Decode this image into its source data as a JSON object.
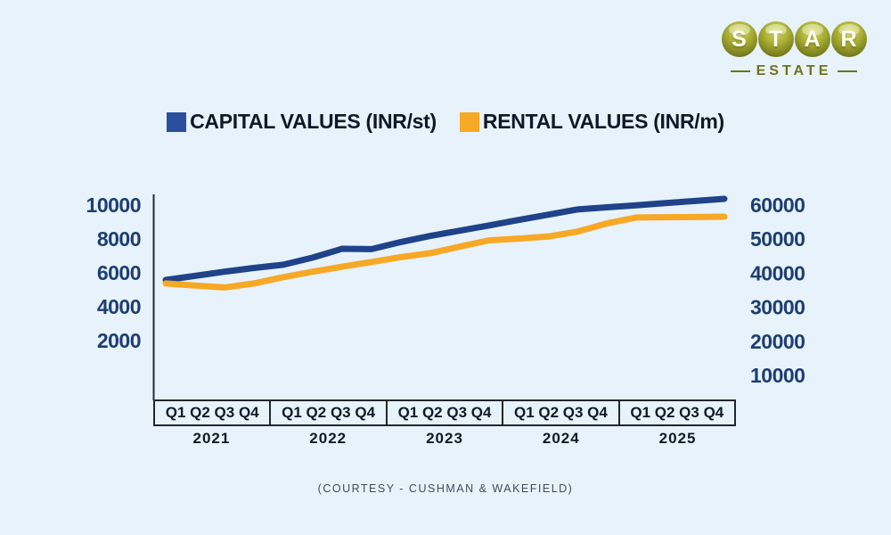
{
  "logo": {
    "letters": [
      "S",
      "T",
      "A",
      "R"
    ],
    "subtitle": "ESTATE"
  },
  "legend": [
    {
      "label": "CAPITAL VALUES (INR/st)",
      "color": "#2b4f9e"
    },
    {
      "label": "RENTAL VALUES (INR/m)",
      "color": "#f7a825"
    }
  ],
  "footer": {
    "courtesy": "(COURTESY - CUSHMAN & WAKEFIELD)"
  },
  "chart_data": {
    "type": "line",
    "x_axis": {
      "years": [
        "2021",
        "2022",
        "2023",
        "2024",
        "2025"
      ],
      "quarters_per_year": [
        "Q1",
        "Q2",
        "Q3",
        "Q4"
      ]
    },
    "left_axis": {
      "label": "CAPITAL VALUES (INR/st)",
      "ticks": [
        2000,
        4000,
        6000,
        8000,
        10000
      ]
    },
    "right_axis": {
      "label": "RENTAL VALUES (INR/m)",
      "ticks": [
        10000,
        20000,
        30000,
        40000,
        50000,
        60000
      ]
    },
    "legend_position": "top",
    "grid": false,
    "series": [
      {
        "name": "CAPITAL VALUES (INR/st)",
        "axis": "left",
        "color": "#1f4289",
        "values": [
          5580,
          5820,
          6070,
          6290,
          6480,
          6900,
          7420,
          7400,
          7820,
          8180,
          8490,
          8800,
          9120,
          9430,
          9740,
          9870,
          9990,
          10120,
          10240,
          10370
        ]
      },
      {
        "name": "RENTAL VALUES (INR/m)",
        "axis": "right",
        "color": "#f7a825",
        "values": [
          37000,
          36400,
          35800,
          37000,
          38850,
          40450,
          41900,
          43300,
          44740,
          45900,
          47800,
          49650,
          50150,
          50750,
          52200,
          54600,
          56350,
          56450,
          56500,
          56600
        ]
      }
    ]
  }
}
